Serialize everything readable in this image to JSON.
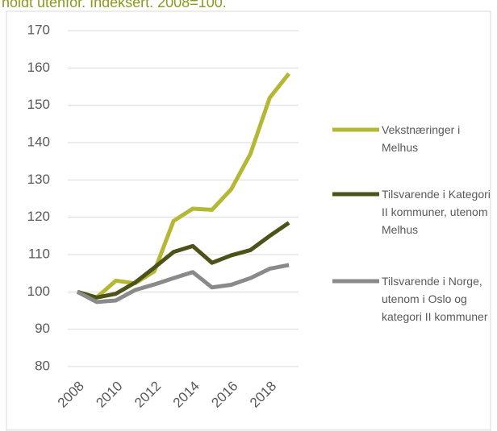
{
  "chart_data": {
    "type": "line",
    "title": "holdt utenfor. Indeksert. 2008=100.",
    "categories": [
      "2008",
      null,
      "2010",
      null,
      "2012",
      null,
      "2014",
      null,
      "2016",
      null,
      "2018",
      null
    ],
    "series": [
      {
        "name": "Vekstnæringer i Melhus",
        "color": "#b5b835",
        "values": [
          100,
          98.5,
          103,
          102.3,
          105.5,
          119,
          122.3,
          122,
          127.5,
          137,
          152,
          158.5
        ]
      },
      {
        "name": "Tilsvarende i Kategori II kommuner, utenom Melhus",
        "color": "#4d5218",
        "values": [
          100,
          98.5,
          99.5,
          102.5,
          106.5,
          110.7,
          112.3,
          107.8,
          109.8,
          111.2,
          115,
          118.5
        ]
      },
      {
        "name": "Tilsvarende i Norge, utenom i Oslo og kategori II kommuner",
        "color": "#8a8a8a",
        "values": [
          100,
          97.3,
          97.7,
          100.5,
          102,
          103.7,
          105.3,
          101.2,
          101.9,
          103.7,
          106.2,
          107.2
        ]
      }
    ],
    "ylim": [
      80,
      170
    ],
    "yticks": [
      80,
      90,
      100,
      110,
      120,
      130,
      140,
      150,
      160,
      170
    ],
    "grid": true,
    "legend": "right"
  }
}
